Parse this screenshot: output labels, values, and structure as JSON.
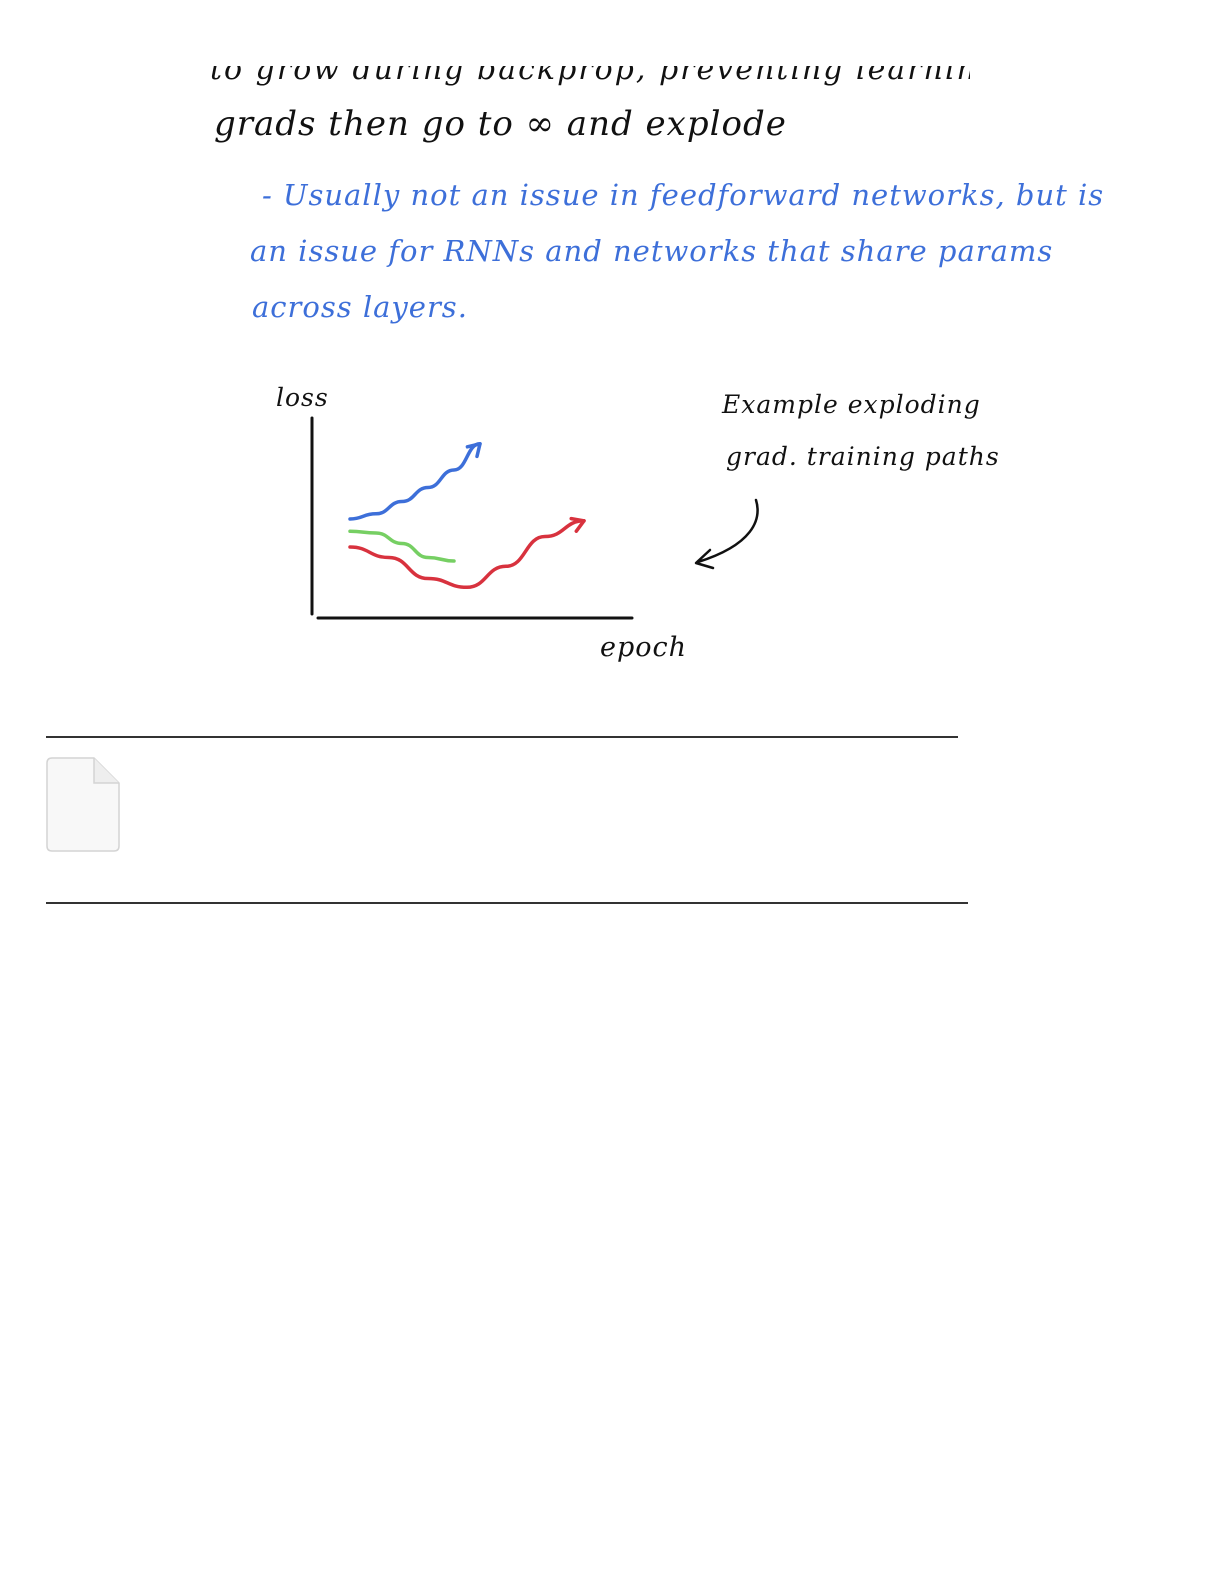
{
  "note": {
    "cut_line_text": "to grow during backprop, preventing learning, which",
    "line1": "grads then go to ∞ and explode",
    "blue_line1": "- Usually not an issue in feedforward networks, but is",
    "blue_line2": "an issue for RNNs and networks that share params",
    "blue_line3": "across layers.",
    "sketch": {
      "ylabel": "loss",
      "xlabel": "epoch",
      "annotation_line1": "Example exploding",
      "annotation_line2": "grad. training paths"
    }
  },
  "chart_data": {
    "type": "line",
    "title": "",
    "xlabel": "epoch",
    "ylabel": "loss",
    "series": [
      {
        "color": "#3d6fd9",
        "x": [
          0.0,
          0.1,
          0.2,
          0.3,
          0.4,
          0.5
        ],
        "y": [
          0.52,
          0.55,
          0.62,
          0.7,
          0.8,
          0.95
        ],
        "arrow": true
      },
      {
        "color": "#76cf63",
        "x": [
          0.0,
          0.1,
          0.2,
          0.3,
          0.4
        ],
        "y": [
          0.45,
          0.44,
          0.38,
          0.3,
          0.28
        ],
        "arrow": false
      },
      {
        "color": "#d8323e",
        "x": [
          0.0,
          0.15,
          0.3,
          0.45,
          0.6,
          0.75,
          0.9
        ],
        "y": [
          0.36,
          0.3,
          0.18,
          0.13,
          0.25,
          0.42,
          0.51
        ],
        "arrow": true
      }
    ],
    "xlim": [
      0,
      1
    ],
    "ylim": [
      0,
      1
    ],
    "grid": false,
    "legend": "none"
  },
  "colors": {
    "ink": "#111111",
    "blue_ink": "#3d6fd9",
    "series_blue": "#3d6fd9",
    "series_green": "#76cf63",
    "series_red": "#d8323e",
    "rule": "#333333",
    "attachment_fill": "#f8f8f8",
    "attachment_stroke": "#d4d4d4"
  },
  "attachment": {
    "icon": "file-icon"
  }
}
